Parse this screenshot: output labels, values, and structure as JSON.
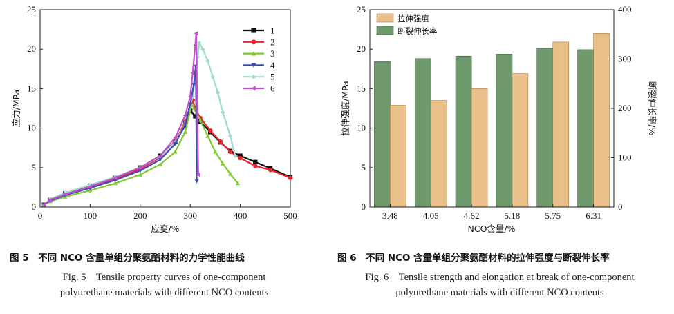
{
  "figure5": {
    "caption_cn": "图 5　不同 NCO 含量单组分聚氨酯材料的力学性能曲线",
    "caption_en_line1": "Fig. 5　Tensile property curves of one-component",
    "caption_en_line2": "polyurethane materials with different NCO contents"
  },
  "figure6": {
    "caption_cn": "图 6　不同 NCO 含量单组分聚氨酯材料的拉伸强度与断裂伸长率",
    "caption_en_line1": "Fig. 6　Tensile strength and elongation at break of one-component",
    "caption_en_line2": "polyurethane materials with different NCO contents"
  },
  "colors": {
    "s1": "#111111",
    "s2": "#e8252b",
    "s3": "#7fc82e",
    "s4": "#3f4fb0",
    "s5": "#9fdacf",
    "s6": "#c04fcf",
    "tensile": "#e9c08a",
    "elong": "#6f9a6d"
  },
  "chart_data": [
    {
      "type": "line",
      "title": "",
      "xlabel": "应变/%",
      "ylabel": "应力/MPa",
      "xlim": [
        0,
        500
      ],
      "ylim": [
        0,
        25
      ],
      "xticks": [
        0,
        100,
        200,
        300,
        400,
        500
      ],
      "yticks": [
        0,
        5,
        10,
        15,
        20,
        25
      ],
      "legend_position": "top-right",
      "series": [
        {
          "name": "1",
          "marker": "square",
          "x": [
            8,
            20,
            50,
            100,
            150,
            200,
            240,
            270,
            290,
            300,
            310,
            320,
            340,
            360,
            380,
            400,
            430,
            460,
            500
          ],
          "y": [
            0.3,
            0.9,
            1.7,
            2.7,
            3.7,
            5.0,
            6.5,
            8.3,
            10.3,
            12.2,
            11.5,
            10.8,
            9.5,
            8.2,
            7.1,
            6.5,
            5.7,
            4.9,
            3.8
          ]
        },
        {
          "name": "2",
          "marker": "circle",
          "x": [
            8,
            20,
            50,
            100,
            150,
            200,
            240,
            270,
            290,
            305,
            310,
            320,
            340,
            360,
            380,
            400,
            430,
            460,
            500
          ],
          "y": [
            0.3,
            0.8,
            1.6,
            2.5,
            3.5,
            4.8,
            6.3,
            8.3,
            10.8,
            13.5,
            12.5,
            11.3,
            9.7,
            8.3,
            7.0,
            6.2,
            5.2,
            4.7,
            3.7
          ]
        },
        {
          "name": "3",
          "marker": "triangle-up",
          "x": [
            8,
            20,
            50,
            100,
            150,
            200,
            240,
            270,
            290,
            303,
            310,
            320,
            335,
            350,
            365,
            380,
            395
          ],
          "y": [
            0.3,
            0.7,
            1.3,
            2.1,
            3.0,
            4.1,
            5.4,
            7.0,
            9.5,
            13.0,
            12.3,
            11.0,
            9.0,
            7.0,
            5.5,
            4.2,
            3.0
          ]
        },
        {
          "name": "4",
          "marker": "triangle-down",
          "x": [
            8,
            20,
            50,
            100,
            150,
            200,
            240,
            270,
            290,
            300,
            307,
            311,
            313
          ],
          "y": [
            0.3,
            0.8,
            1.5,
            2.4,
            3.4,
            4.6,
            6.0,
            8.0,
            10.5,
            13.0,
            15.5,
            17.8,
            3.3
          ]
        },
        {
          "name": "5",
          "marker": "diamond",
          "x": [
            8,
            20,
            50,
            100,
            150,
            200,
            240,
            270,
            290,
            305,
            315,
            318,
            325,
            335,
            345,
            355,
            365,
            380,
            390
          ],
          "y": [
            0.3,
            1.0,
            1.8,
            2.8,
            3.8,
            5.0,
            6.4,
            8.2,
            10.6,
            14.0,
            19.0,
            20.8,
            20.0,
            18.5,
            16.5,
            14.5,
            12.0,
            9.0,
            6.5
          ]
        },
        {
          "name": "6",
          "marker": "triangle-left",
          "x": [
            8,
            20,
            50,
            100,
            150,
            200,
            240,
            270,
            290,
            300,
            305,
            310,
            312,
            316
          ],
          "y": [
            0.3,
            0.9,
            1.6,
            2.6,
            3.7,
            5.0,
            6.5,
            8.8,
            11.6,
            14.0,
            17.0,
            20.5,
            22.0,
            4.1
          ]
        }
      ]
    },
    {
      "type": "bar",
      "title": "",
      "xlabel": "NCO含量/%",
      "ylabel": "拉伸强度/MPa",
      "ylabel_right": "断裂伸长率/%",
      "categories": [
        "3.48",
        "4.05",
        "4.62",
        "5.18",
        "5.75",
        "6.31"
      ],
      "ylim": [
        0,
        25
      ],
      "ylim_right": [
        0,
        400
      ],
      "yticks": [
        0,
        5,
        10,
        15,
        20,
        25
      ],
      "yticks_right": [
        0,
        100,
        200,
        300,
        400
      ],
      "legend_position": "top-left",
      "series": [
        {
          "name": "拉伸强度",
          "axis": "left",
          "values": [
            12.9,
            13.5,
            15.0,
            16.9,
            20.9,
            22.0
          ]
        },
        {
          "name": "断裂伸长率",
          "axis": "right",
          "values": [
            295,
            301,
            306,
            310,
            321,
            319
          ]
        }
      ]
    }
  ]
}
